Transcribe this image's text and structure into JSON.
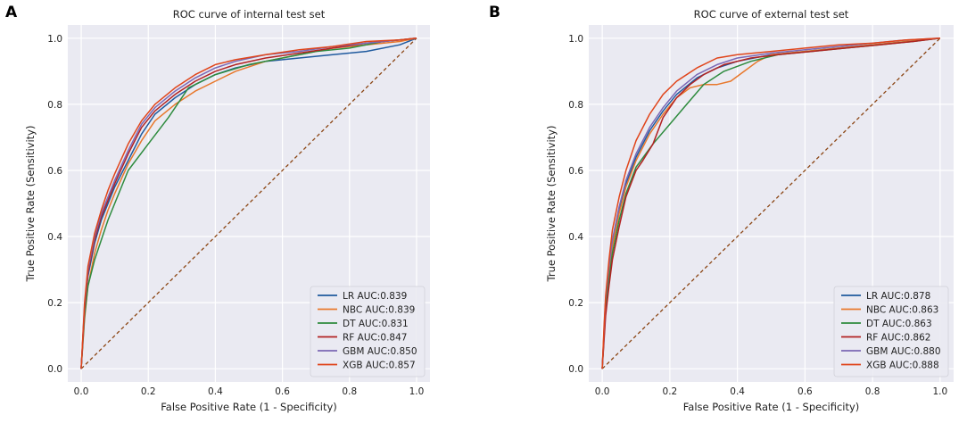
{
  "panels": [
    {
      "letter": "A"
    },
    {
      "letter": "B"
    }
  ],
  "chart_data": [
    {
      "type": "line",
      "title": "ROC curve of internal test set",
      "xlabel": "False Positive Rate (1 - Specificity)",
      "ylabel": "True Positive Rate (Sensitivity)",
      "xlim": [
        -0.04,
        1.04
      ],
      "ylim": [
        -0.04,
        1.04
      ],
      "xticks": [
        "0.0",
        "0.2",
        "0.4",
        "0.6",
        "0.8",
        "1.0"
      ],
      "yticks": [
        "0.0",
        "0.2",
        "0.4",
        "0.6",
        "0.8",
        "1.0"
      ],
      "legend_position": "lower-right",
      "diagonal": {
        "x": [
          0,
          1
        ],
        "y": [
          0,
          1
        ],
        "color": "#8B4513"
      },
      "series": [
        {
          "name": "LR AUC:0.839",
          "color": "#1f5a9e",
          "x": [
            0,
            0.01,
            0.02,
            0.04,
            0.06,
            0.08,
            0.1,
            0.14,
            0.18,
            0.22,
            0.28,
            0.34,
            0.4,
            0.46,
            0.55,
            0.65,
            0.75,
            0.85,
            0.95,
            1.0
          ],
          "y": [
            0,
            0.18,
            0.28,
            0.38,
            0.45,
            0.5,
            0.55,
            0.63,
            0.71,
            0.77,
            0.82,
            0.86,
            0.89,
            0.91,
            0.93,
            0.94,
            0.95,
            0.96,
            0.98,
            1.0
          ]
        },
        {
          "name": "NBC AUC:0.839",
          "color": "#e8782c",
          "x": [
            0,
            0.01,
            0.02,
            0.04,
            0.06,
            0.08,
            0.1,
            0.14,
            0.18,
            0.22,
            0.28,
            0.34,
            0.4,
            0.46,
            0.55,
            0.65,
            0.75,
            0.85,
            0.95,
            1.0
          ],
          "y": [
            0,
            0.15,
            0.25,
            0.35,
            0.42,
            0.48,
            0.53,
            0.62,
            0.69,
            0.75,
            0.8,
            0.84,
            0.87,
            0.9,
            0.93,
            0.95,
            0.97,
            0.98,
            0.99,
            1.0
          ]
        },
        {
          "name": "DT AUC:0.831",
          "color": "#2e8b3e",
          "x": [
            0,
            0.01,
            0.02,
            0.04,
            0.06,
            0.08,
            0.1,
            0.14,
            0.2,
            0.26,
            0.32,
            0.4,
            0.5,
            0.6,
            0.7,
            0.8,
            0.9,
            1.0
          ],
          "y": [
            0,
            0.16,
            0.25,
            0.33,
            0.39,
            0.45,
            0.5,
            0.6,
            0.68,
            0.76,
            0.85,
            0.89,
            0.92,
            0.94,
            0.96,
            0.97,
            0.99,
            1.0
          ]
        },
        {
          "name": "RF AUC:0.847",
          "color": "#b22222",
          "x": [
            0,
            0.01,
            0.02,
            0.04,
            0.06,
            0.08,
            0.1,
            0.14,
            0.18,
            0.22,
            0.28,
            0.34,
            0.4,
            0.46,
            0.55,
            0.65,
            0.75,
            0.85,
            0.95,
            1.0
          ],
          "y": [
            0,
            0.18,
            0.29,
            0.39,
            0.46,
            0.51,
            0.56,
            0.65,
            0.73,
            0.78,
            0.83,
            0.87,
            0.9,
            0.92,
            0.94,
            0.955,
            0.97,
            0.985,
            0.995,
            1.0
          ]
        },
        {
          "name": "GBM AUC:0.850",
          "color": "#7b68b5",
          "x": [
            0,
            0.01,
            0.02,
            0.04,
            0.06,
            0.08,
            0.1,
            0.14,
            0.18,
            0.22,
            0.28,
            0.34,
            0.4,
            0.46,
            0.55,
            0.65,
            0.75,
            0.85,
            0.95,
            1.0
          ],
          "y": [
            0,
            0.19,
            0.3,
            0.4,
            0.47,
            0.52,
            0.57,
            0.66,
            0.74,
            0.79,
            0.84,
            0.88,
            0.91,
            0.93,
            0.95,
            0.96,
            0.975,
            0.985,
            0.995,
            1.0
          ]
        },
        {
          "name": "XGB AUC:0.857",
          "color": "#e0451b",
          "x": [
            0,
            0.01,
            0.02,
            0.04,
            0.06,
            0.08,
            0.1,
            0.14,
            0.18,
            0.22,
            0.28,
            0.34,
            0.4,
            0.46,
            0.55,
            0.65,
            0.75,
            0.85,
            0.95,
            1.0
          ],
          "y": [
            0,
            0.2,
            0.31,
            0.41,
            0.48,
            0.54,
            0.59,
            0.68,
            0.75,
            0.8,
            0.85,
            0.89,
            0.92,
            0.935,
            0.95,
            0.965,
            0.975,
            0.99,
            0.995,
            1.0
          ]
        }
      ]
    },
    {
      "type": "line",
      "title": "ROC curve of external test set",
      "xlabel": "False Positive Rate (1 - Specificity)",
      "ylabel": "True Positive Rate (Sensitivity)",
      "xlim": [
        -0.04,
        1.04
      ],
      "ylim": [
        -0.04,
        1.04
      ],
      "xticks": [
        "0.0",
        "0.2",
        "0.4",
        "0.6",
        "0.8",
        "1.0"
      ],
      "yticks": [
        "0.0",
        "0.2",
        "0.4",
        "0.6",
        "0.8",
        "1.0"
      ],
      "legend_position": "lower-right",
      "diagonal": {
        "x": [
          0,
          1
        ],
        "y": [
          0,
          1
        ],
        "color": "#8B4513"
      },
      "series": [
        {
          "name": "LR AUC:0.878",
          "color": "#1f5a9e",
          "x": [
            0,
            0.005,
            0.01,
            0.02,
            0.03,
            0.05,
            0.07,
            0.1,
            0.14,
            0.18,
            0.22,
            0.28,
            0.34,
            0.4,
            0.5,
            0.6,
            0.7,
            0.8,
            0.9,
            1.0
          ],
          "y": [
            0,
            0.1,
            0.2,
            0.3,
            0.38,
            0.48,
            0.56,
            0.64,
            0.72,
            0.78,
            0.83,
            0.88,
            0.91,
            0.93,
            0.95,
            0.96,
            0.97,
            0.98,
            0.99,
            1.0
          ]
        },
        {
          "name": "NBC AUC:0.863",
          "color": "#e8782c",
          "x": [
            0,
            0.005,
            0.01,
            0.02,
            0.03,
            0.05,
            0.07,
            0.1,
            0.14,
            0.18,
            0.22,
            0.26,
            0.3,
            0.34,
            0.38,
            0.42,
            0.46,
            0.5,
            0.6,
            0.7,
            0.8,
            0.9,
            1.0
          ],
          "y": [
            0,
            0.1,
            0.19,
            0.29,
            0.37,
            0.47,
            0.55,
            0.63,
            0.71,
            0.77,
            0.82,
            0.85,
            0.86,
            0.86,
            0.87,
            0.9,
            0.93,
            0.95,
            0.96,
            0.97,
            0.98,
            0.99,
            1.0
          ]
        },
        {
          "name": "DT AUC:0.863",
          "color": "#2e8b3e",
          "x": [
            0,
            0.005,
            0.01,
            0.02,
            0.03,
            0.05,
            0.07,
            0.1,
            0.15,
            0.2,
            0.25,
            0.3,
            0.36,
            0.44,
            0.52,
            0.62,
            0.72,
            0.82,
            0.92,
            1.0
          ],
          "y": [
            0,
            0.09,
            0.18,
            0.27,
            0.35,
            0.45,
            0.53,
            0.61,
            0.68,
            0.74,
            0.8,
            0.86,
            0.9,
            0.93,
            0.95,
            0.96,
            0.97,
            0.98,
            0.99,
            1.0
          ]
        },
        {
          "name": "RF AUC:0.862",
          "color": "#b22222",
          "x": [
            0,
            0.005,
            0.01,
            0.02,
            0.03,
            0.05,
            0.07,
            0.1,
            0.12,
            0.15,
            0.18,
            0.22,
            0.26,
            0.3,
            0.36,
            0.44,
            0.52,
            0.62,
            0.72,
            0.82,
            0.92,
            1.0
          ],
          "y": [
            0,
            0.08,
            0.16,
            0.25,
            0.33,
            0.43,
            0.52,
            0.6,
            0.63,
            0.68,
            0.76,
            0.82,
            0.86,
            0.89,
            0.92,
            0.94,
            0.95,
            0.96,
            0.97,
            0.98,
            0.99,
            1.0
          ]
        },
        {
          "name": "GBM AUC:0.880",
          "color": "#7b68b5",
          "x": [
            0,
            0.005,
            0.01,
            0.02,
            0.03,
            0.05,
            0.07,
            0.1,
            0.14,
            0.18,
            0.22,
            0.28,
            0.34,
            0.4,
            0.5,
            0.6,
            0.7,
            0.8,
            0.9,
            1.0
          ],
          "y": [
            0,
            0.11,
            0.21,
            0.31,
            0.39,
            0.49,
            0.57,
            0.65,
            0.73,
            0.79,
            0.84,
            0.89,
            0.92,
            0.94,
            0.955,
            0.965,
            0.975,
            0.985,
            0.995,
            1.0
          ]
        },
        {
          "name": "XGB AUC:0.888",
          "color": "#e0451b",
          "x": [
            0,
            0.005,
            0.01,
            0.02,
            0.03,
            0.05,
            0.07,
            0.1,
            0.14,
            0.18,
            0.22,
            0.28,
            0.34,
            0.4,
            0.5,
            0.6,
            0.7,
            0.8,
            0.9,
            1.0
          ],
          "y": [
            0,
            0.12,
            0.22,
            0.33,
            0.42,
            0.52,
            0.6,
            0.69,
            0.77,
            0.83,
            0.87,
            0.91,
            0.94,
            0.95,
            0.96,
            0.97,
            0.98,
            0.985,
            0.995,
            1.0
          ]
        }
      ]
    }
  ]
}
